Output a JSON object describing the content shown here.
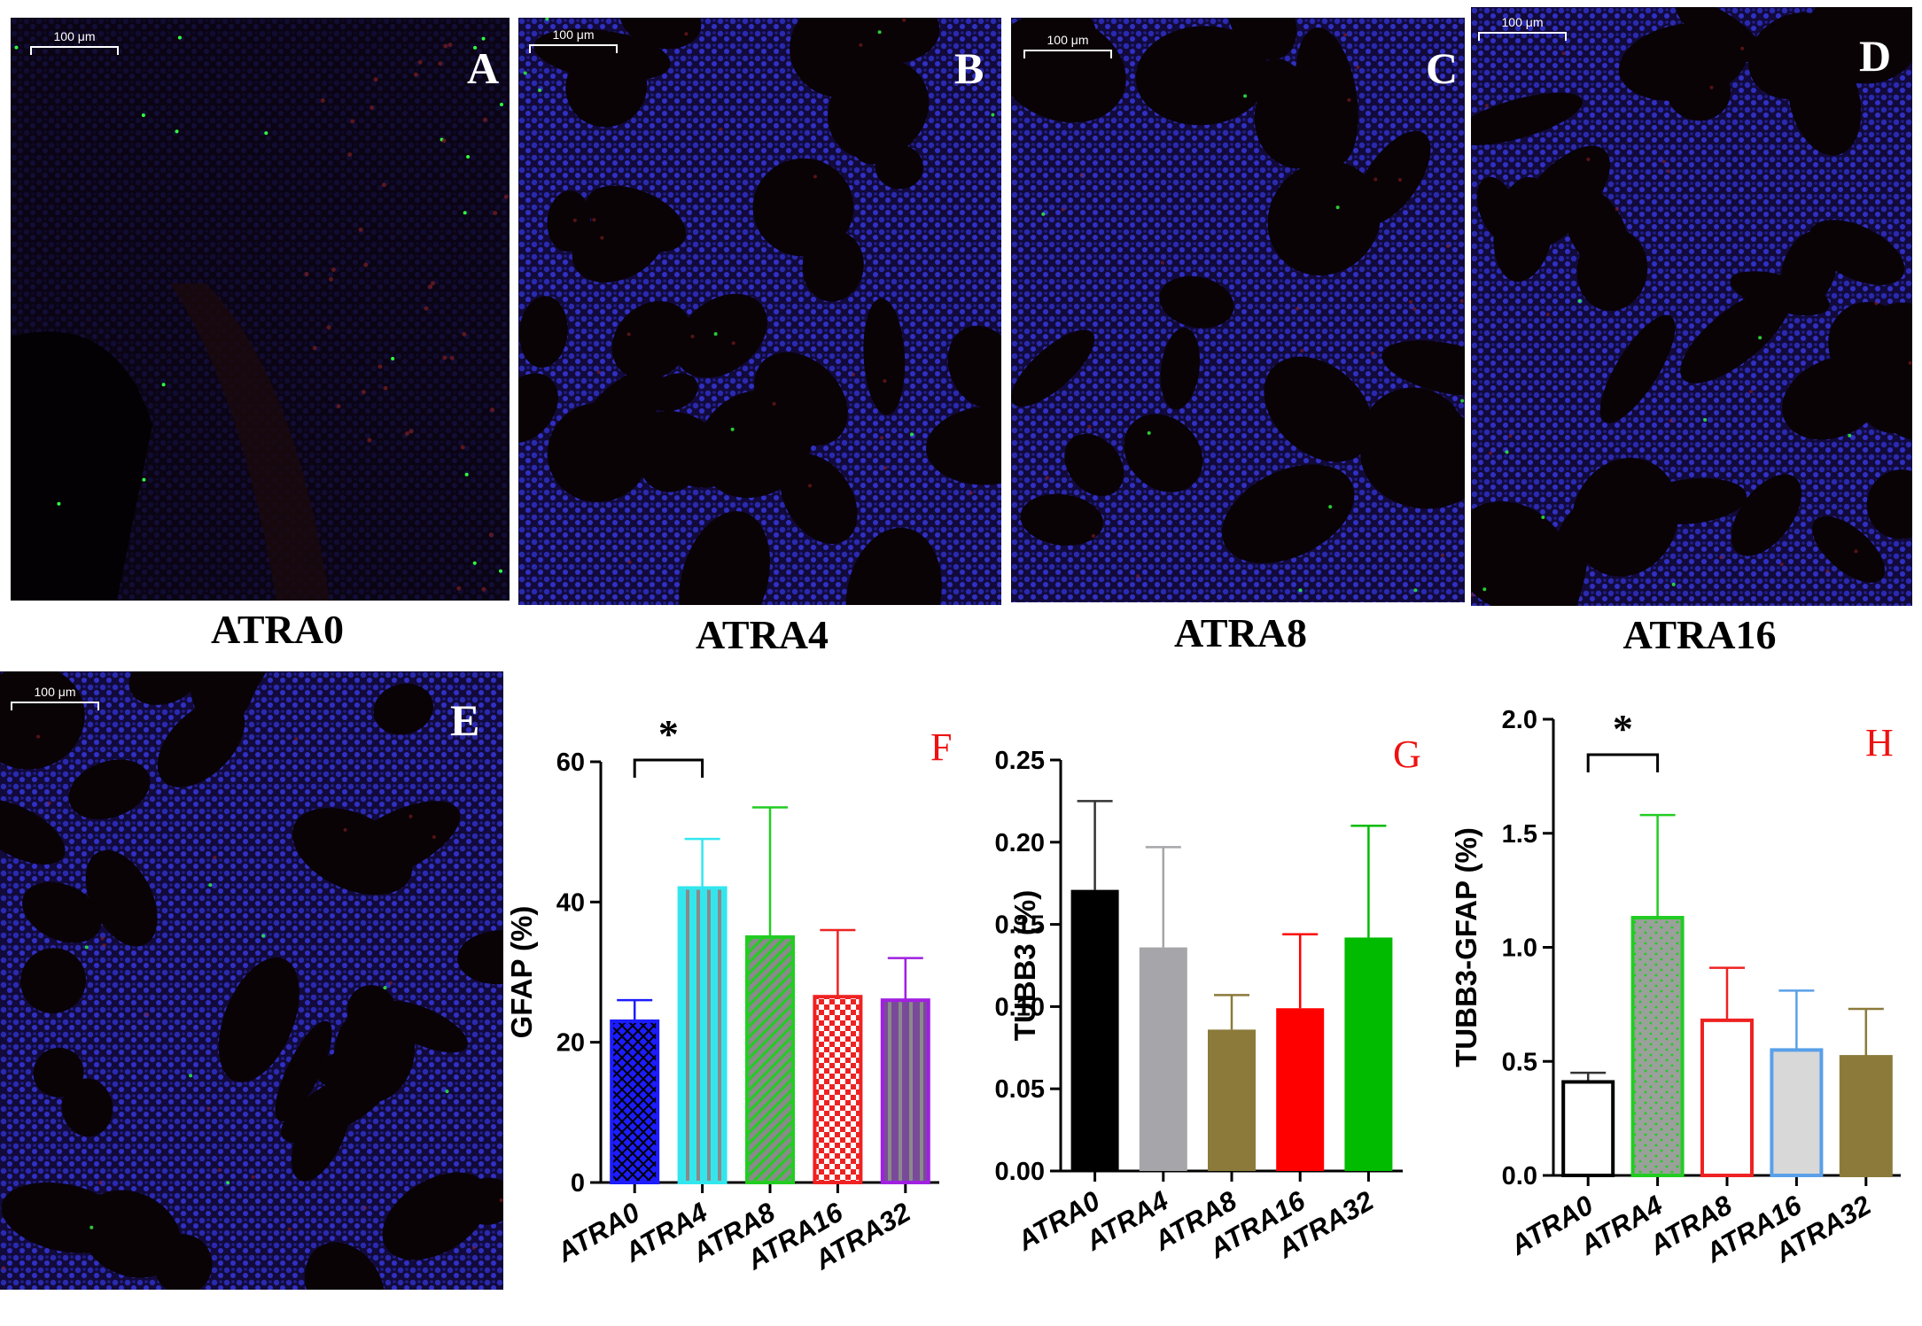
{
  "micrographs": [
    {
      "letter": "A",
      "caption": "ATRA0",
      "scale_label": "100 μm"
    },
    {
      "letter": "B",
      "caption": "ATRA4",
      "scale_label": "100 μm"
    },
    {
      "letter": "C",
      "caption": "ATRA8",
      "scale_label": "100 μm"
    },
    {
      "letter": "D",
      "caption": "ATRA16",
      "scale_label": "100 μm"
    },
    {
      "letter": "E",
      "caption": "",
      "scale_label": "100 μm"
    }
  ],
  "chart_data": [
    {
      "panel": "F",
      "type": "bar",
      "ylabel": "GFAP   (%)",
      "ylim": [
        0,
        60
      ],
      "yticks": [
        0,
        20,
        40,
        60
      ],
      "categories": [
        "ATRA0",
        "ATRA4",
        "ATRA8",
        "ATRA16",
        "ATRA32"
      ],
      "values": [
        23,
        42,
        35,
        26.5,
        26
      ],
      "errors": [
        26,
        49,
        53.5,
        36,
        32
      ],
      "colors": [
        "#1c1cff",
        "#33e6ee",
        "#22cc22",
        "#ee2222",
        "#a020e0"
      ],
      "significance": {
        "from": 0,
        "to": 1,
        "label": "*"
      }
    },
    {
      "panel": "G",
      "type": "bar",
      "ylabel": "TUBB3 (%)",
      "ylim": [
        0,
        0.25
      ],
      "yticks": [
        "0.00",
        "0.05",
        "0.10",
        "0.15",
        "0.20",
        "0.25"
      ],
      "categories": [
        "ATRA0",
        "ATRA4",
        "ATRA8",
        "ATRA16",
        "ATRA32"
      ],
      "values": [
        0.171,
        0.136,
        0.086,
        0.099,
        0.142
      ],
      "errors": [
        0.225,
        0.197,
        0.107,
        0.144,
        0.21
      ],
      "colors": [
        "#000000",
        "#a6a6aa",
        "#8b7a3a",
        "#ff0000",
        "#00bb00"
      ],
      "significance": null
    },
    {
      "panel": "H",
      "type": "bar",
      "ylabel": "TUBB3-GFAP (%)",
      "ylim": [
        0,
        2.0
      ],
      "yticks": [
        "0.0",
        "0.5",
        "1.0",
        "1.5",
        "2.0"
      ],
      "categories": [
        "ATRA0",
        "ATRA4",
        "ATRA8",
        "ATRA16",
        "ATRA32"
      ],
      "values": [
        0.41,
        1.13,
        0.68,
        0.55,
        0.52
      ],
      "errors": [
        0.45,
        1.58,
        0.91,
        0.81,
        0.73
      ],
      "colors": [
        "#000000",
        "#22cc22",
        "#ee2222",
        "#5aa0e8",
        "#8b7a3a"
      ],
      "significance": {
        "from": 0,
        "to": 1,
        "label": "*"
      }
    }
  ]
}
